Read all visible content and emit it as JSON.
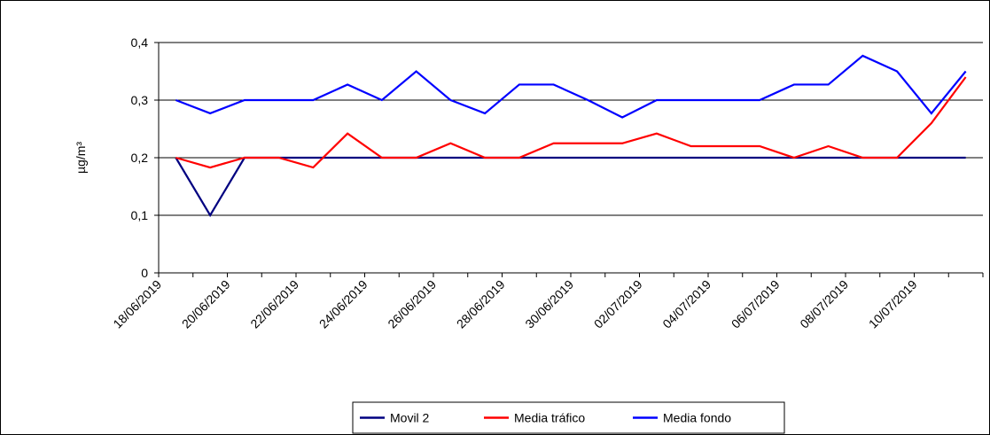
{
  "chart_data": {
    "type": "line",
    "ylabel": "µg/m³",
    "categories": [
      "18/06/2019",
      null,
      "20/06/2019",
      null,
      "22/06/2019",
      null,
      "24/06/2019",
      null,
      "26/06/2019",
      null,
      "28/06/2019",
      null,
      "30/06/2019",
      null,
      "02/07/2019",
      null,
      "04/07/2019",
      null,
      "06/07/2019",
      null,
      "08/07/2019",
      null,
      "10/07/2019",
      null
    ],
    "series": [
      {
        "name": "Movil 2",
        "color": "#000080",
        "values": [
          0.2,
          0.1,
          0.2,
          0.2,
          0.2,
          0.2,
          0.2,
          0.2,
          0.2,
          0.2,
          0.2,
          0.2,
          0.2,
          0.2,
          0.2,
          0.2,
          0.2,
          0.2,
          0.2,
          0.2,
          0.2,
          0.2,
          0.2,
          0.2
        ]
      },
      {
        "name": "Media tráfico",
        "color": "#ff0000",
        "values": [
          0.2,
          0.183,
          0.2,
          0.2,
          0.183,
          0.242,
          0.2,
          0.2,
          0.225,
          0.2,
          0.2,
          0.225,
          0.225,
          0.225,
          0.242,
          0.22,
          0.22,
          0.22,
          0.2,
          0.22,
          0.2,
          0.2,
          0.26,
          0.34
        ]
      },
      {
        "name": "Media fondo",
        "color": "#0000ff",
        "values": [
          0.3,
          0.277,
          0.3,
          0.3,
          0.3,
          0.327,
          0.3,
          0.35,
          0.3,
          0.277,
          0.327,
          0.327,
          0.3,
          0.27,
          0.3,
          0.3,
          0.3,
          0.3,
          0.327,
          0.327,
          0.377,
          0.35,
          0.277,
          0.35
        ]
      }
    ],
    "ylim": [
      0,
      0.4
    ],
    "yticks": [
      0,
      {
        "value": 0.1,
        "label": "0,1"
      },
      {
        "value": 0.2,
        "label": "0,2"
      },
      {
        "value": 0.3,
        "label": "0,3"
      },
      {
        "value": 0.4,
        "label": "0,4"
      }
    ],
    "grid": true,
    "legend": "bottom"
  }
}
